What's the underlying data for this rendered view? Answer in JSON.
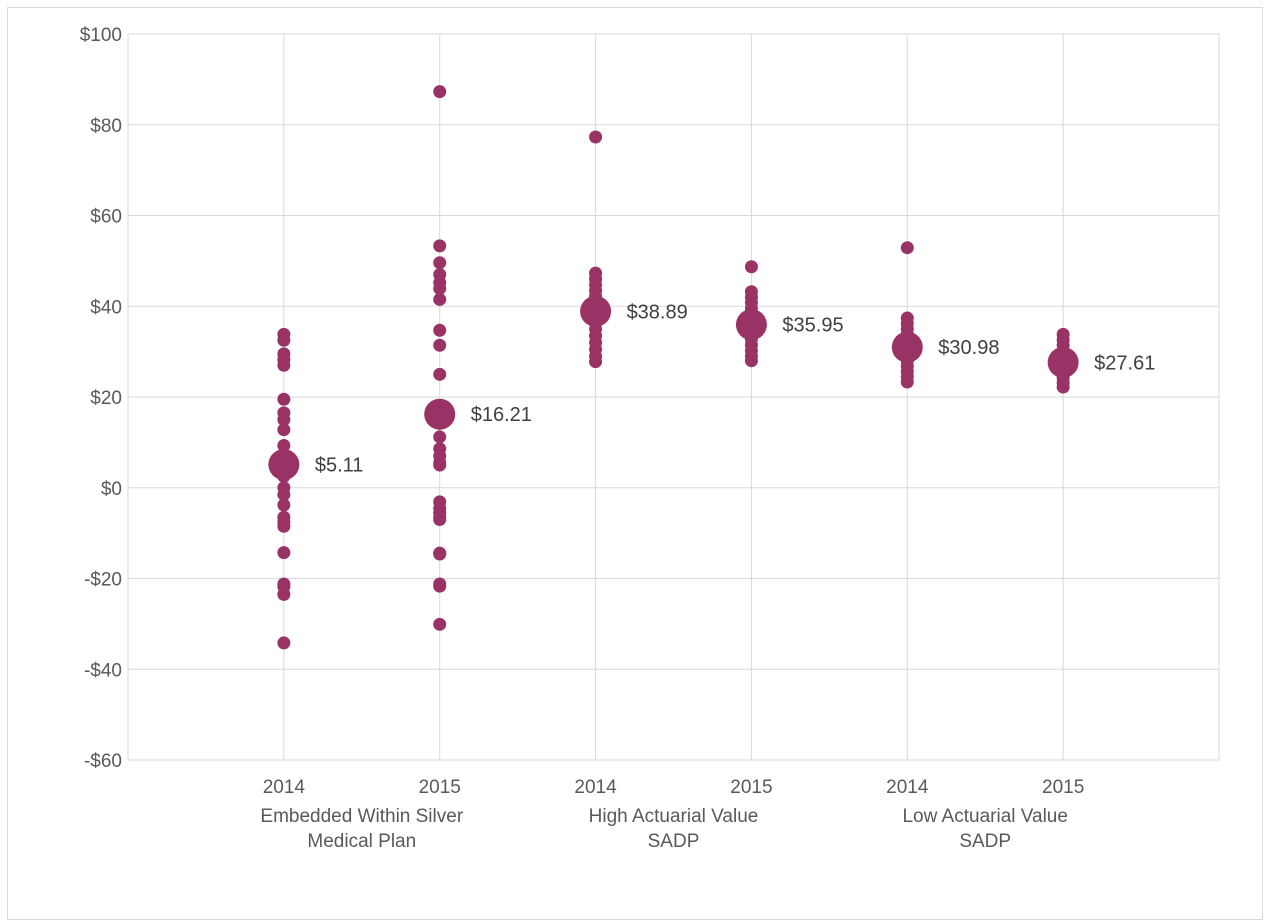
{
  "chart_data": {
    "type": "scatter",
    "title": "",
    "xlabel": "",
    "ylabel": "",
    "ylim": [
      -60,
      100
    ],
    "y_ticks": [
      -60,
      -40,
      -20,
      0,
      20,
      40,
      60,
      80,
      100
    ],
    "y_tick_labels": [
      "-$60",
      "-$40",
      "-$20",
      "$0",
      "$20",
      "$40",
      "$60",
      "$80",
      "$100"
    ],
    "grid": true,
    "legend": "none",
    "colors": {
      "points": "#993366",
      "grid": "#d9d9d9",
      "text": "#595959"
    },
    "categories": [
      {
        "year": "2014",
        "group": "Embedded Within Silver Medical Plan"
      },
      {
        "year": "2015",
        "group": "Embedded Within Silver Medical Plan"
      },
      {
        "year": "2014",
        "group": "High Actuarial Value SADP"
      },
      {
        "year": "2015",
        "group": "High Actuarial Value SADP"
      },
      {
        "year": "2014",
        "group": "Low Actuarial Value SADP"
      },
      {
        "year": "2015",
        "group": "Low Actuarial Value SADP"
      }
    ],
    "groups": [
      {
        "label": [
          "Embedded Within Silver",
          "Medical Plan"
        ],
        "categories": [
          0,
          1
        ]
      },
      {
        "label": [
          "High Actuarial Value",
          "SADP"
        ],
        "categories": [
          2,
          3
        ]
      },
      {
        "label": [
          "Low Actuarial Value",
          "SADP"
        ],
        "categories": [
          4,
          5
        ]
      }
    ],
    "points": [
      [
        33.8,
        32.5,
        29.5,
        28.3,
        27.0,
        19.5,
        16.5,
        15.0,
        12.8,
        9.3,
        6.5,
        4.5,
        2.5,
        0.0,
        -1.5,
        -3.8,
        -6.5,
        -7.5,
        -8.5,
        -14.3,
        -21.2,
        -21.8,
        -23.5,
        -34.2
      ],
      [
        87.3,
        53.3,
        49.6,
        47.0,
        45.2,
        43.9,
        41.5,
        34.7,
        31.4,
        25.0,
        14.2,
        11.2,
        8.6,
        7.0,
        5.5,
        5.0,
        -3.1,
        -4.5,
        -5.5,
        -6.5,
        -7.0,
        -14.4,
        -14.6,
        -21.2,
        -21.7,
        -30.1
      ],
      [
        77.3,
        47.3,
        46.0,
        44.7,
        43.5,
        42.2,
        41.0,
        39.5,
        38.0,
        36.5,
        35.0,
        33.5,
        32.0,
        30.5,
        29.0,
        27.8
      ],
      [
        48.7,
        43.2,
        42.0,
        40.8,
        39.5,
        38.0,
        36.8,
        35.5,
        34.0,
        32.8,
        31.5,
        30.2,
        29.0,
        28.0
      ],
      [
        52.9,
        37.4,
        36.2,
        35.0,
        33.8,
        32.6,
        31.5,
        30.3,
        29.1,
        28.0,
        26.8,
        25.6,
        24.5,
        23.3
      ],
      [
        33.8,
        32.6,
        31.4,
        30.2,
        29.0,
        27.8,
        26.6,
        25.4,
        24.3,
        23.2,
        22.2
      ]
    ],
    "means": [
      5.11,
      16.21,
      38.89,
      35.95,
      30.98,
      27.61
    ],
    "mean_labels": [
      "$5.11",
      "$16.21",
      "$38.89",
      "$35.95",
      "$30.98",
      "$27.61"
    ]
  }
}
